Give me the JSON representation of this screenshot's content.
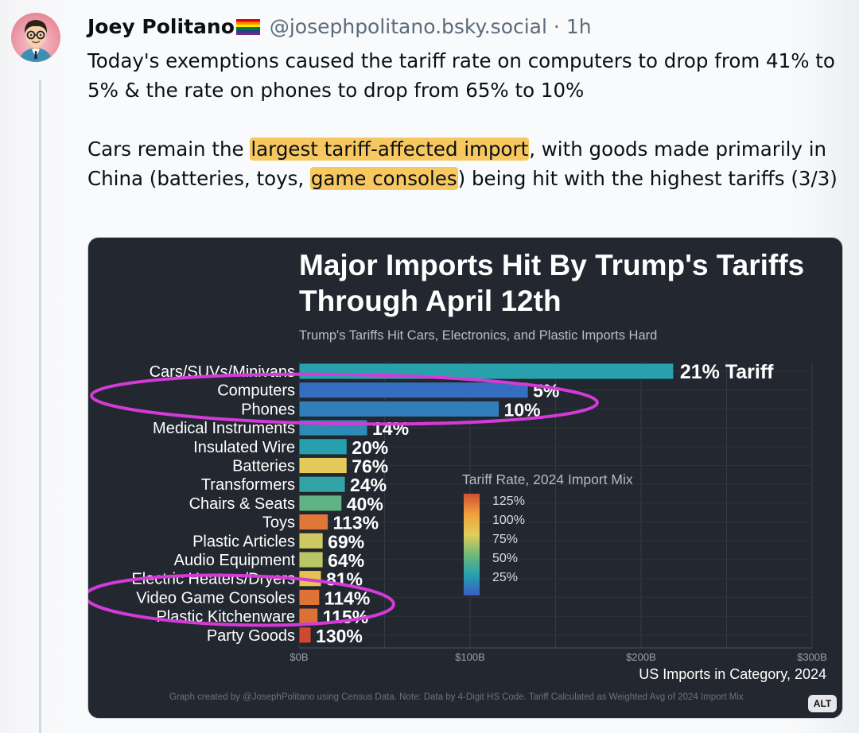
{
  "post": {
    "author_name": "Joey Politano",
    "handle": "@josephpolitano.bsky.social",
    "separator": "·",
    "timestamp": "1h",
    "paragraph1": "Today's exemptions caused the tariff rate on computers to drop from 41% to 5% & the rate on phones to drop from 65% to 10%",
    "p2_a": "Cars remain the ",
    "p2_hl1": "largest tariff-affected import",
    "p2_b": ", with goods made primarily in China (batteries, toys, ",
    "p2_hl2": "game consoles",
    "p2_c": ") being hit with the highest tariffs (3/3)",
    "highlight_color": "#f6c85f",
    "alt_badge": "ALT"
  },
  "chart_data": {
    "type": "bar",
    "orientation": "horizontal",
    "title": "Major Imports Hit By Trump's Tariffs Through April 12th",
    "subtitle": "Trump's Tariffs Hit Cars, Electronics, and Plastic Imports Hard",
    "xlabel": "US Imports in Category, 2024",
    "xlim": [
      0,
      300
    ],
    "xticks": [
      "$0B",
      "$100B",
      "$200B",
      "$300B"
    ],
    "categories": [
      "Cars/SUVs/Minivans",
      "Computers",
      "Phones",
      "Medical Instruments",
      "Insulated Wire",
      "Batteries",
      "Transformers",
      "Chairs & Seats",
      "Toys",
      "Plastic Articles",
      "Audio Equipment",
      "Electric Heaters/Dryers",
      "Video Game Consoles",
      "Plastic Kitchenware",
      "Party Goods"
    ],
    "values": [
      219,
      134,
      117,
      40,
      28,
      28,
      27,
      25,
      17,
      14,
      14,
      13,
      12,
      11,
      7
    ],
    "bar_labels": [
      "21% Tariff",
      "5%",
      "10%",
      "14%",
      "20%",
      "76%",
      "24%",
      "40%",
      "113%",
      "69%",
      "64%",
      "81%",
      "114%",
      "115%",
      "130%"
    ],
    "tariff_rates": [
      21,
      5,
      10,
      14,
      20,
      76,
      24,
      40,
      113,
      69,
      64,
      81,
      114,
      115,
      130
    ],
    "legend_title": "Tariff Rate, 2024 Import Mix",
    "legend_ticks": [
      "125%",
      "100%",
      "75%",
      "50%",
      "25%"
    ],
    "legend_position": "center-right",
    "grid": true,
    "footer": "Graph created by @JosephPolitano using Census Data. Note: Data by 4-Digit HS Code. Tariff Calculated as Weighted Avg of 2024 Import Mix",
    "annotation_color": "#d43ad7"
  }
}
